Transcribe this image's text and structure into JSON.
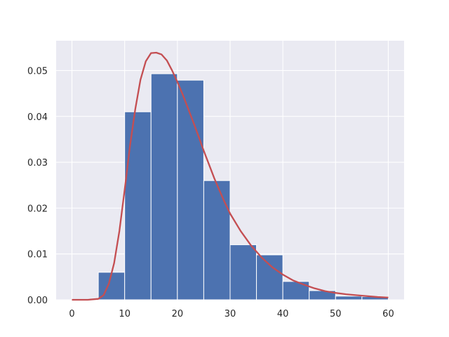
{
  "chart_data": {
    "type": "bar",
    "subtype": "histogram-with-density-curve",
    "title": "",
    "xlabel": "",
    "ylabel": "",
    "xlim": [
      -3,
      63
    ],
    "ylim": [
      0,
      0.0565
    ],
    "grid": true,
    "xticks": [
      0,
      10,
      20,
      30,
      40,
      50,
      60
    ],
    "yticks": [
      0.0,
      0.01,
      0.02,
      0.03,
      0.04,
      0.05
    ],
    "xtick_labels": [
      "0",
      "10",
      "20",
      "30",
      "40",
      "50",
      "60"
    ],
    "ytick_labels": [
      "0.00",
      "0.01",
      "0.02",
      "0.03",
      "0.04",
      "0.05"
    ],
    "bins": [
      {
        "start": 0,
        "end": 5,
        "value": 0.0
      },
      {
        "start": 5,
        "end": 10,
        "value": 0.006
      },
      {
        "start": 10,
        "end": 15,
        "value": 0.041
      },
      {
        "start": 15,
        "end": 20,
        "value": 0.0493
      },
      {
        "start": 20,
        "end": 25,
        "value": 0.0479
      },
      {
        "start": 25,
        "end": 30,
        "value": 0.026
      },
      {
        "start": 30,
        "end": 35,
        "value": 0.012
      },
      {
        "start": 35,
        "end": 40,
        "value": 0.0098
      },
      {
        "start": 40,
        "end": 45,
        "value": 0.004
      },
      {
        "start": 45,
        "end": 50,
        "value": 0.002
      },
      {
        "start": 50,
        "end": 55,
        "value": 0.0008
      },
      {
        "start": 55,
        "end": 60,
        "value": 0.0007
      }
    ],
    "curve": {
      "x": [
        0,
        3,
        5,
        6,
        7,
        8,
        9,
        10,
        11,
        12,
        13,
        14,
        15,
        16,
        17,
        18,
        19,
        20,
        21,
        22,
        23,
        24,
        25,
        26,
        27,
        28,
        29,
        30,
        32,
        34,
        36,
        38,
        40,
        42,
        44,
        46,
        48,
        50,
        52,
        54,
        56,
        58,
        60
      ],
      "y": [
        0.0,
        0.0,
        0.0002,
        0.001,
        0.0035,
        0.008,
        0.015,
        0.024,
        0.0335,
        0.0415,
        0.048,
        0.052,
        0.0538,
        0.0539,
        0.0535,
        0.0522,
        0.05,
        0.0475,
        0.0448,
        0.0418,
        0.0388,
        0.0357,
        0.0325,
        0.0295,
        0.0265,
        0.0238,
        0.0212,
        0.0188,
        0.015,
        0.0118,
        0.0092,
        0.0071,
        0.0055,
        0.0042,
        0.0033,
        0.0025,
        0.0019,
        0.0015,
        0.0012,
        0.001,
        0.0008,
        0.0006,
        0.0005
      ]
    },
    "colors": {
      "bars": "#4c72b0",
      "curve": "#c44e52",
      "plot_background": "#eaeaf2",
      "grid": "#ffffff"
    }
  }
}
